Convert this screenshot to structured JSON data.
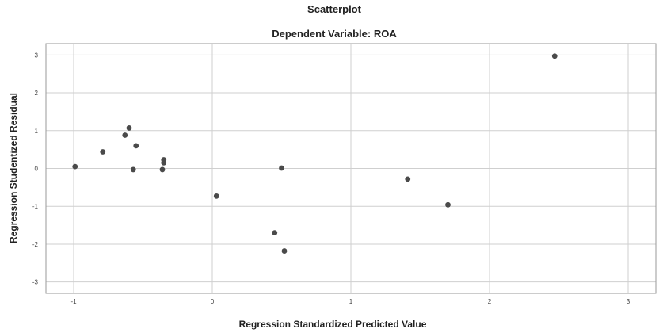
{
  "chart_data": {
    "type": "scatter",
    "title": "Scatterplot",
    "subtitle": "Dependent Variable: ROA",
    "xlabel": "Regression Standardized Predicted Value",
    "ylabel": "Regression Studentized Residual",
    "xlim": [
      -1.2,
      3.2
    ],
    "ylim": [
      -3.3,
      3.3
    ],
    "xticks": [
      -1,
      0,
      1,
      2,
      3
    ],
    "yticks": [
      -3,
      -2,
      -1,
      0,
      1,
      2,
      3
    ],
    "grid": true,
    "legend": "none",
    "point_color": "#4a4a4a",
    "points": [
      {
        "x": -0.99,
        "y": 0.05
      },
      {
        "x": -0.79,
        "y": 0.44
      },
      {
        "x": -0.63,
        "y": 0.88
      },
      {
        "x": -0.6,
        "y": 1.07
      },
      {
        "x": -0.57,
        "y": -0.03
      },
      {
        "x": -0.55,
        "y": 0.6
      },
      {
        "x": -0.35,
        "y": 0.23
      },
      {
        "x": -0.35,
        "y": 0.15
      },
      {
        "x": -0.36,
        "y": -0.03
      },
      {
        "x": 0.03,
        "y": -0.73
      },
      {
        "x": 0.45,
        "y": -1.7
      },
      {
        "x": 0.5,
        "y": 0.01
      },
      {
        "x": 0.52,
        "y": -2.18
      },
      {
        "x": 1.41,
        "y": -0.28
      },
      {
        "x": 1.7,
        "y": -0.96
      },
      {
        "x": 2.47,
        "y": 2.97
      }
    ]
  }
}
